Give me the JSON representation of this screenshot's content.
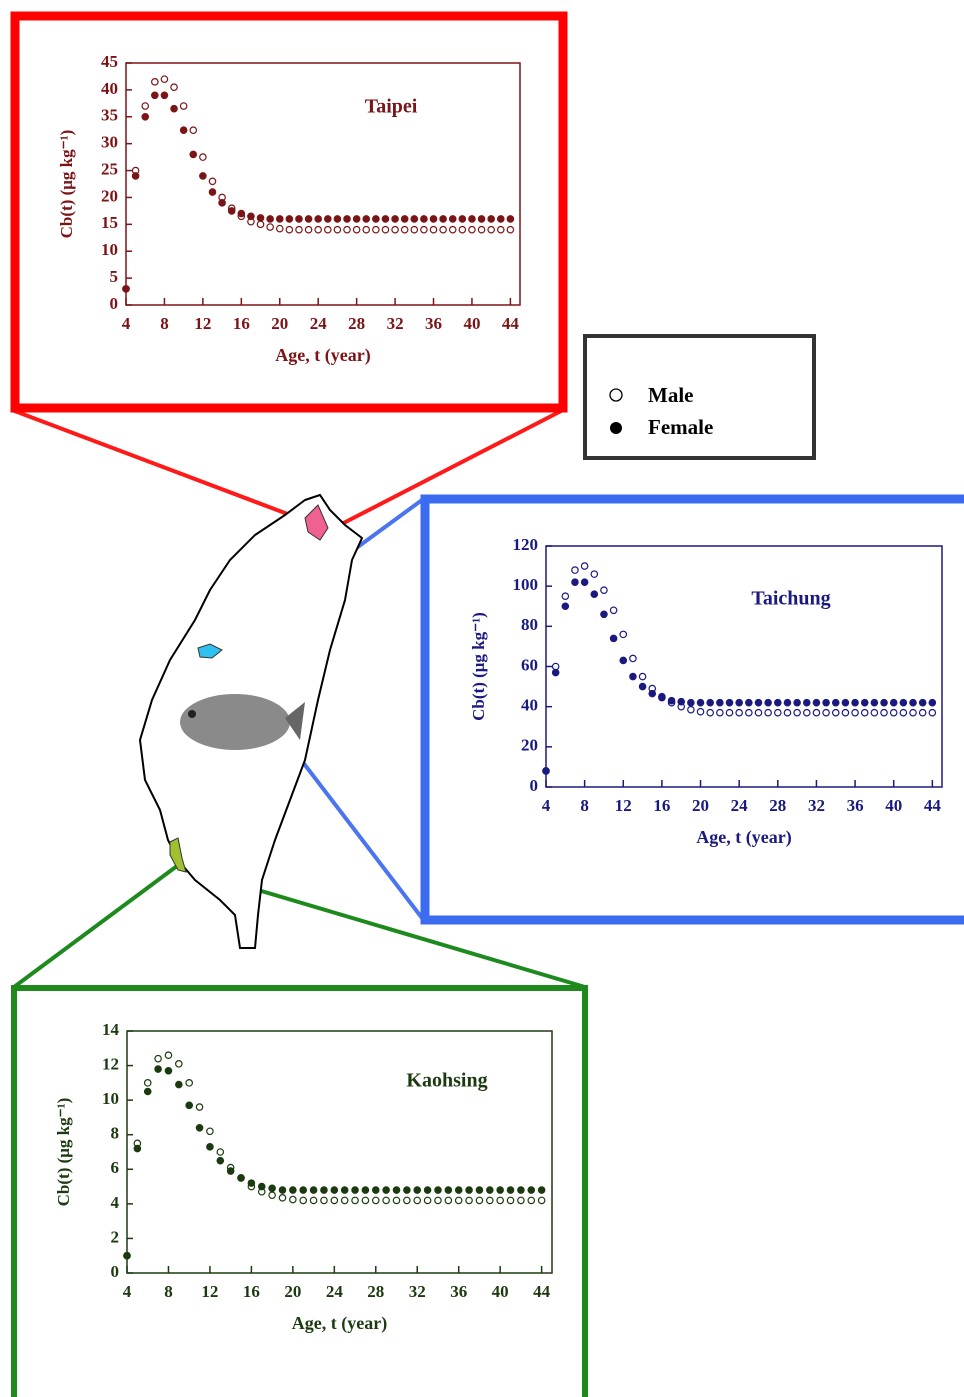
{
  "chart_data": [
    {
      "type": "scatter",
      "title": "Taipei",
      "x_label": "Age, t (year)",
      "y_label": "Cb(t) (μg kg⁻¹)",
      "color": "#7b1416",
      "x": [
        4,
        5,
        6,
        7,
        8,
        9,
        10,
        11,
        12,
        13,
        14,
        15,
        16,
        17,
        18,
        19,
        20,
        21,
        22,
        23,
        24,
        25,
        26,
        27,
        28,
        29,
        30,
        31,
        32,
        33,
        34,
        35,
        36,
        37,
        38,
        39,
        40,
        41,
        42,
        43,
        44
      ],
      "xlim": [
        4,
        45
      ],
      "ylim": [
        0,
        45
      ],
      "xticks": [
        4,
        8,
        12,
        16,
        20,
        24,
        28,
        32,
        36,
        40,
        44
      ],
      "yticks": [
        0,
        5,
        10,
        15,
        20,
        25,
        30,
        35,
        40,
        45
      ],
      "series": [
        {
          "name": "Male",
          "marker": "open",
          "values": [
            3,
            25,
            37,
            41.5,
            42,
            40.5,
            37,
            32.5,
            27.5,
            23,
            20,
            18,
            16.5,
            15.5,
            15,
            14.5,
            14.2,
            14,
            14,
            14,
            14,
            14,
            14,
            14,
            14,
            14,
            14,
            14,
            14,
            14,
            14,
            14,
            14,
            14,
            14,
            14,
            14,
            14,
            14,
            14,
            14
          ]
        },
        {
          "name": "Female",
          "marker": "filled",
          "values": [
            3,
            24,
            35,
            39,
            39,
            36.5,
            32.5,
            28,
            24,
            21,
            19,
            17.5,
            17,
            16.5,
            16.2,
            16,
            16,
            16,
            16,
            16,
            16,
            16,
            16,
            16,
            16,
            16,
            16,
            16,
            16,
            16,
            16,
            16,
            16,
            16,
            16,
            16,
            16,
            16,
            16,
            16,
            16
          ]
        }
      ]
    },
    {
      "type": "scatter",
      "title": "Taichung",
      "x_label": "Age, t (year)",
      "y_label": "Cb(t) (μg kg⁻¹)",
      "color": "#1a1a7e",
      "x": [
        4,
        5,
        6,
        7,
        8,
        9,
        10,
        11,
        12,
        13,
        14,
        15,
        16,
        17,
        18,
        19,
        20,
        21,
        22,
        23,
        24,
        25,
        26,
        27,
        28,
        29,
        30,
        31,
        32,
        33,
        34,
        35,
        36,
        37,
        38,
        39,
        40,
        41,
        42,
        43,
        44
      ],
      "xlim": [
        4,
        45
      ],
      "ylim": [
        0,
        120
      ],
      "xticks": [
        4,
        8,
        12,
        16,
        20,
        24,
        28,
        32,
        36,
        40,
        44
      ],
      "yticks": [
        0,
        20,
        40,
        60,
        80,
        100,
        120
      ],
      "series": [
        {
          "marker": "open",
          "values": [
            8,
            60,
            95,
            108,
            110,
            106,
            98,
            88,
            76,
            64,
            55,
            49,
            45,
            42,
            40,
            38.5,
            37.5,
            37,
            37,
            37,
            37,
            37,
            37,
            37,
            37,
            37,
            37,
            37,
            37,
            37,
            37,
            37,
            37,
            37,
            37,
            37,
            37,
            37,
            37,
            37,
            37
          ]
        },
        {
          "marker": "filled",
          "values": [
            8,
            57,
            90,
            102,
            102,
            96,
            86,
            74,
            63,
            55,
            50,
            46.5,
            44.5,
            43,
            42.5,
            42,
            42,
            42,
            42,
            42,
            42,
            42,
            42,
            42,
            42,
            42,
            42,
            42,
            42,
            42,
            42,
            42,
            42,
            42,
            42,
            42,
            42,
            42,
            42,
            42,
            42
          ]
        }
      ]
    },
    {
      "type": "scatter",
      "title": "Kaohsing",
      "x_label": "Age, t (year)",
      "y_label": "Cb(t) (μg kg⁻¹)",
      "color": "#1c3a10",
      "x": [
        4,
        5,
        6,
        7,
        8,
        9,
        10,
        11,
        12,
        13,
        14,
        15,
        16,
        17,
        18,
        19,
        20,
        21,
        22,
        23,
        24,
        25,
        26,
        27,
        28,
        29,
        30,
        31,
        32,
        33,
        34,
        35,
        36,
        37,
        38,
        39,
        40,
        41,
        42,
        43,
        44
      ],
      "xlim": [
        4,
        45
      ],
      "ylim": [
        0,
        14
      ],
      "xticks": [
        4,
        8,
        12,
        16,
        20,
        24,
        28,
        32,
        36,
        40,
        44
      ],
      "yticks": [
        0,
        2,
        4,
        6,
        8,
        10,
        12,
        14
      ],
      "series": [
        {
          "marker": "open",
          "values": [
            1,
            7.5,
            11,
            12.4,
            12.6,
            12.1,
            11,
            9.6,
            8.2,
            7,
            6.1,
            5.5,
            5,
            4.7,
            4.5,
            4.35,
            4.25,
            4.2,
            4.2,
            4.2,
            4.2,
            4.2,
            4.2,
            4.2,
            4.2,
            4.2,
            4.2,
            4.2,
            4.2,
            4.2,
            4.2,
            4.2,
            4.2,
            4.2,
            4.2,
            4.2,
            4.2,
            4.2,
            4.2,
            4.2,
            4.2
          ]
        },
        {
          "marker": "filled",
          "values": [
            1,
            7.2,
            10.5,
            11.8,
            11.7,
            10.9,
            9.7,
            8.4,
            7.3,
            6.5,
            5.9,
            5.5,
            5.2,
            5,
            4.9,
            4.8,
            4.8,
            4.8,
            4.8,
            4.8,
            4.8,
            4.8,
            4.8,
            4.8,
            4.8,
            4.8,
            4.8,
            4.8,
            4.8,
            4.8,
            4.8,
            4.8,
            4.8,
            4.8,
            4.8,
            4.8,
            4.8,
            4.8,
            4.8,
            4.8,
            4.8
          ]
        }
      ]
    }
  ]
}
